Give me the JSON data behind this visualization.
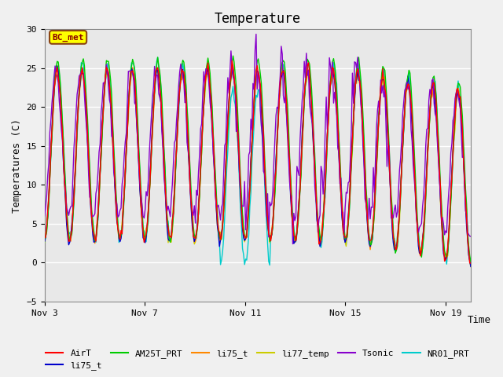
{
  "title": "Temperature",
  "xlabel": "Time",
  "ylabel": "Temperatures (C)",
  "ylim": [
    -5,
    30
  ],
  "xlim": [
    0,
    17
  ],
  "x_ticks": [
    0,
    4,
    8,
    12,
    16
  ],
  "x_tick_labels": [
    "Nov 3",
    "Nov 7",
    "Nov 11",
    "Nov 15",
    "Nov 19"
  ],
  "y_ticks": [
    -5,
    0,
    5,
    10,
    15,
    20,
    25,
    30
  ],
  "bg_color": "#e8e8e8",
  "plot_bg_color": "#e8e8e8",
  "legend_label": "BC_met",
  "series_colors": {
    "AirT": "#ff0000",
    "li75_t_blue": "#0000cc",
    "AM25T_PRT": "#00cc00",
    "li75_t_orange": "#ff8800",
    "li77_temp": "#cccc00",
    "Tsonic": "#8800cc",
    "NR01_PRT": "#00cccc"
  },
  "grid_color": "#ffffff",
  "grid_linewidth": 1.0
}
